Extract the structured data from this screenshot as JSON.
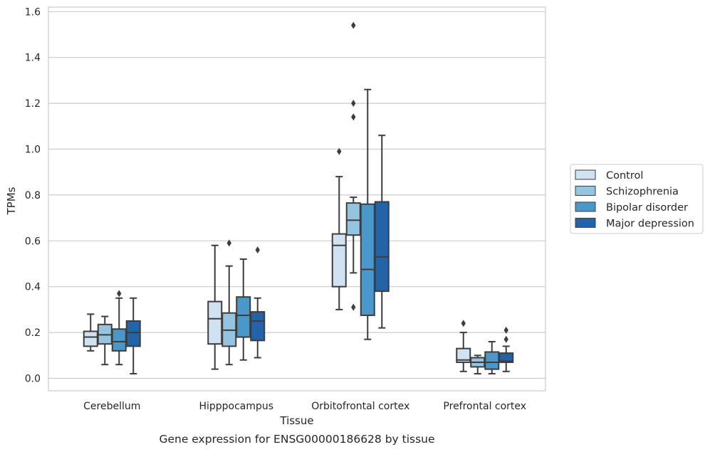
{
  "chart_data": {
    "type": "box",
    "title": "",
    "caption": "Gene expression for ENSG00000186628 by tissue",
    "xlabel": "Tissue",
    "ylabel": "TPMs",
    "ylim": [
      -0.05,
      1.62
    ],
    "yticks": [
      "0.0",
      "0.2",
      "0.4",
      "0.6",
      "0.8",
      "1.0",
      "1.2",
      "1.4",
      "1.6"
    ],
    "grid": "horizontal",
    "legend_position": "right",
    "categories": [
      "Cerebellum",
      "Hipppocampus",
      "Orbitofrontal cortex",
      "Prefrontal cortex"
    ],
    "series": [
      {
        "name": "Control",
        "color": "#d0e1f2",
        "boxes": [
          {
            "whislo": 0.12,
            "q1": 0.14,
            "med": 0.18,
            "q3": 0.205,
            "whishi": 0.28,
            "fliers": []
          },
          {
            "whislo": 0.04,
            "q1": 0.15,
            "med": 0.26,
            "q3": 0.335,
            "whishi": 0.58,
            "fliers": []
          },
          {
            "whislo": 0.3,
            "q1": 0.4,
            "med": 0.58,
            "q3": 0.63,
            "whishi": 0.88,
            "fliers": [
              0.99
            ]
          },
          {
            "whislo": 0.03,
            "q1": 0.07,
            "med": 0.08,
            "q3": 0.13,
            "whishi": 0.2,
            "fliers": [
              0.24
            ]
          }
        ]
      },
      {
        "name": "Schizophrenia",
        "color": "#94c4df",
        "boxes": [
          {
            "whislo": 0.06,
            "q1": 0.15,
            "med": 0.19,
            "q3": 0.235,
            "whishi": 0.27,
            "fliers": []
          },
          {
            "whislo": 0.06,
            "q1": 0.14,
            "med": 0.21,
            "q3": 0.285,
            "whishi": 0.49,
            "fliers": [
              0.59
            ]
          },
          {
            "whislo": 0.46,
            "q1": 0.625,
            "med": 0.69,
            "q3": 0.765,
            "whishi": 0.79,
            "fliers": [
              0.31,
              1.14,
              1.2,
              1.54
            ]
          },
          {
            "whislo": 0.02,
            "q1": 0.05,
            "med": 0.07,
            "q3": 0.09,
            "whishi": 0.1,
            "fliers": []
          }
        ]
      },
      {
        "name": "Bipolar disorder",
        "color": "#4a98c9",
        "boxes": [
          {
            "whislo": 0.06,
            "q1": 0.12,
            "med": 0.16,
            "q3": 0.215,
            "whishi": 0.35,
            "fliers": [
              0.37
            ]
          },
          {
            "whislo": 0.08,
            "q1": 0.18,
            "med": 0.275,
            "q3": 0.355,
            "whishi": 0.52,
            "fliers": []
          },
          {
            "whislo": 0.17,
            "q1": 0.275,
            "med": 0.475,
            "q3": 0.76,
            "whishi": 1.26,
            "fliers": []
          },
          {
            "whislo": 0.02,
            "q1": 0.04,
            "med": 0.07,
            "q3": 0.115,
            "whishi": 0.16,
            "fliers": []
          }
        ]
      },
      {
        "name": "Major depression",
        "color": "#2363a8",
        "boxes": [
          {
            "whislo": 0.02,
            "q1": 0.14,
            "med": 0.2,
            "q3": 0.25,
            "whishi": 0.35,
            "fliers": []
          },
          {
            "whislo": 0.09,
            "q1": 0.165,
            "med": 0.25,
            "q3": 0.29,
            "whishi": 0.35,
            "fliers": [
              0.56
            ]
          },
          {
            "whislo": 0.22,
            "q1": 0.38,
            "med": 0.53,
            "q3": 0.77,
            "whishi": 1.06,
            "fliers": []
          },
          {
            "whislo": 0.03,
            "q1": 0.07,
            "med": 0.075,
            "q3": 0.11,
            "whishi": 0.14,
            "fliers": [
              0.17,
              0.21
            ]
          }
        ]
      }
    ]
  }
}
